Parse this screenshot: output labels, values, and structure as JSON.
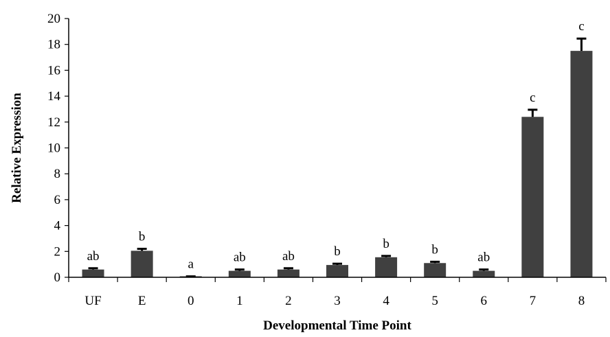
{
  "chart_data": {
    "type": "bar",
    "title": "",
    "xlabel": "Developmental  Time Point",
    "ylabel": "Relative  Expression",
    "ylim": [
      0,
      20
    ],
    "yticks": [
      0,
      2,
      4,
      6,
      8,
      10,
      12,
      14,
      16,
      18,
      20
    ],
    "grid": false,
    "legend": "none",
    "bar_color": "#404040",
    "categories": [
      "UF",
      "E",
      "0",
      "1",
      "2",
      "3",
      "4",
      "5",
      "6",
      "7",
      "8"
    ],
    "values": [
      0.6,
      2.05,
      0.05,
      0.5,
      0.6,
      0.95,
      1.55,
      1.1,
      0.5,
      12.4,
      17.5
    ],
    "errors": [
      0.1,
      0.15,
      0.02,
      0.1,
      0.1,
      0.1,
      0.1,
      0.1,
      0.1,
      0.55,
      0.95
    ],
    "significance_labels": [
      "ab",
      "b",
      "a",
      "ab",
      "ab",
      "b",
      "b",
      "b",
      "ab",
      "c",
      "c"
    ]
  }
}
